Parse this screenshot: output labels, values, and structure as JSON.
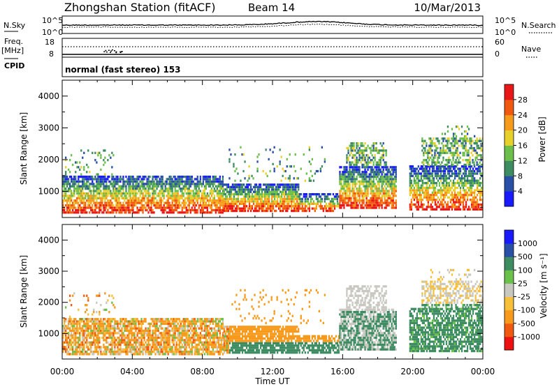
{
  "header": {
    "station": "Zhongshan Station (fitACF)",
    "beam": "Beam 14",
    "date": "10/Mar/2013"
  },
  "noise_panel": {
    "left_label": "N.Sky",
    "left_ticks": [
      "10^5",
      "10^0"
    ],
    "right_ticks": [
      "10^5",
      "10^0"
    ],
    "right_label": "N.Search"
  },
  "freq_panel": {
    "left_label_1": "Freq.",
    "left_label_2": "[MHz]",
    "left_ticks": [
      "18",
      "8"
    ],
    "right_ticks": [
      "60",
      "0"
    ],
    "right_label": "Nave"
  },
  "cpid_panel": {
    "label": "CPID",
    "value": "normal (fast stereo) 153"
  },
  "colors": {
    "power_scale": [
      "#1a1aff",
      "#2a4fa8",
      "#3e8c62",
      "#6cbf4a",
      "#e8d02c",
      "#f59a1a",
      "#f05a10",
      "#e81818"
    ],
    "velocity_scale": [
      "#ee1111",
      "#f05a10",
      "#f79a1c",
      "#f7c03a",
      "#c8c8c0",
      "#6bc14a",
      "#3e8c62",
      "#2a4fa8",
      "#1a1aff"
    ]
  },
  "chart_data": [
    {
      "type": "heatmap",
      "name": "power",
      "ylabel": "Slant Range [km]",
      "xlabel": "Time UT",
      "x_ticks": [
        "00:00",
        "04:00",
        "08:00",
        "12:00",
        "16:00",
        "20:00",
        "00:00"
      ],
      "xlim": [
        0,
        24
      ],
      "ylim": [
        180,
        4500
      ],
      "y_ticks": [
        1000,
        2000,
        3000,
        4000
      ],
      "colorbar_label": "Power [dB]",
      "colorbar_ticks": [
        4,
        8,
        12,
        16,
        20,
        24,
        28
      ],
      "colorbar_range": [
        0,
        30
      ]
    },
    {
      "type": "heatmap",
      "name": "velocity",
      "ylabel": "Slant Range [km]",
      "xlabel": "Time UT",
      "x_ticks": [
        "00:00",
        "04:00",
        "08:00",
        "12:00",
        "16:00",
        "20:00",
        "00:00"
      ],
      "xlim": [
        0,
        24
      ],
      "ylim": [
        180,
        4500
      ],
      "y_ticks": [
        1000,
        2000,
        3000,
        4000
      ],
      "colorbar_label": "Velocity [m s⁻¹]",
      "colorbar_ticks": [
        -1000,
        -500,
        -100,
        -25,
        25,
        100,
        500,
        1000
      ],
      "colorbar_ticklabels": [
        "-1000",
        "-500",
        "-100",
        "-25",
        "25",
        "100",
        "500",
        "1000"
      ]
    }
  ]
}
